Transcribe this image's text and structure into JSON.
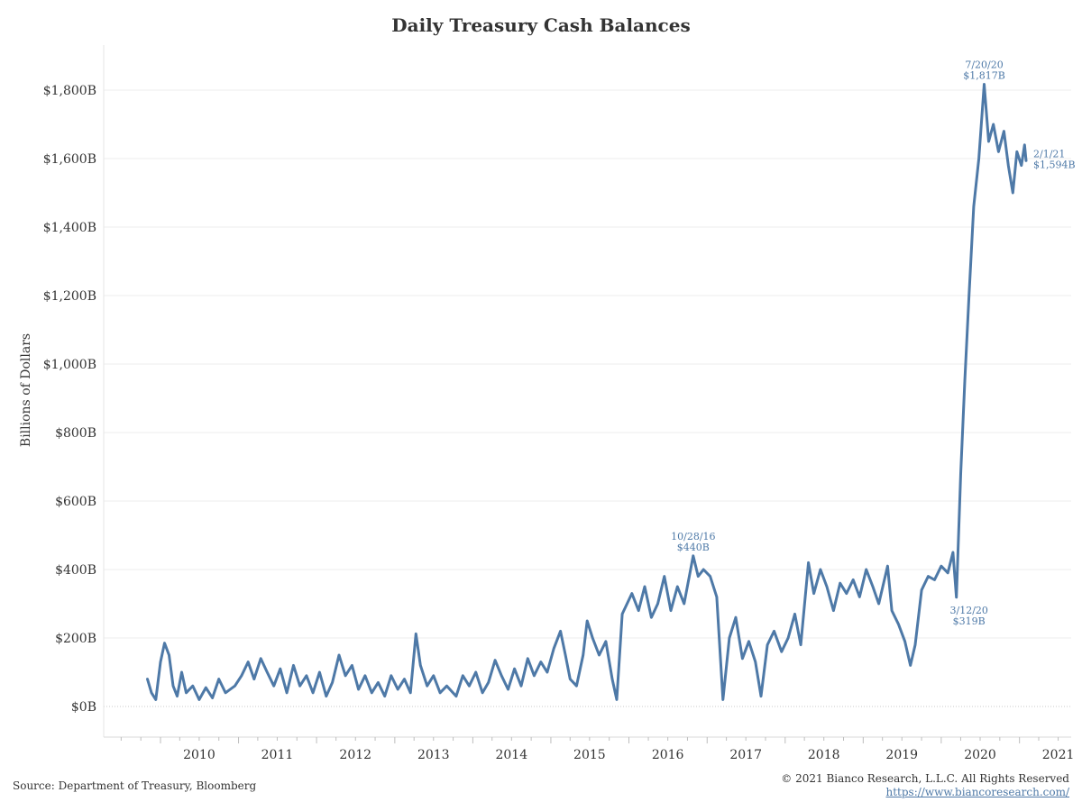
{
  "colors": {
    "line": "#4e79a7",
    "grid": "#ececec",
    "text": "#333333",
    "link": "#4e79a7"
  },
  "footer": {
    "source": "Source: Department of Treasury, Bloomberg",
    "copyright": "© 2021 Bianco Research, L.L.C. All Rights Reserved",
    "website": "https://www.biancoresearch.com/"
  },
  "chart_data": {
    "type": "line",
    "title": "Daily Treasury Cash Balances",
    "xlabel": "",
    "ylabel": "Billions of Dollars",
    "ylim": [
      0,
      1900
    ],
    "xlim": [
      "2009-08-01",
      "2021-06-15"
    ],
    "y_ticks": [
      0,
      200,
      400,
      600,
      800,
      1000,
      1200,
      1400,
      1600,
      1800
    ],
    "y_tick_labels": [
      "$0B",
      "$200B",
      "$400B",
      "$600B",
      "$800B",
      "$1,000B",
      "$1,200B",
      "$1,400B",
      "$1,600B",
      "$1,800B"
    ],
    "x_tick_labels": [
      "2010",
      "2011",
      "2012",
      "2013",
      "2014",
      "2015",
      "2016",
      "2017",
      "2018",
      "2019",
      "2020",
      "2021"
    ],
    "grid": true,
    "series": [
      {
        "color": "#4e79a7",
        "points": [
          [
            "2009-11-01",
            80
          ],
          [
            "2009-11-20",
            40
          ],
          [
            "2009-12-10",
            20
          ],
          [
            "2010-01-01",
            130
          ],
          [
            "2010-01-20",
            185
          ],
          [
            "2010-02-10",
            150
          ],
          [
            "2010-03-01",
            60
          ],
          [
            "2010-03-20",
            30
          ],
          [
            "2010-04-10",
            100
          ],
          [
            "2010-05-01",
            40
          ],
          [
            "2010-06-01",
            60
          ],
          [
            "2010-07-01",
            20
          ],
          [
            "2010-08-01",
            55
          ],
          [
            "2010-09-01",
            25
          ],
          [
            "2010-10-01",
            80
          ],
          [
            "2010-11-01",
            40
          ],
          [
            "2010-12-15",
            60
          ],
          [
            "2011-01-15",
            90
          ],
          [
            "2011-02-15",
            130
          ],
          [
            "2011-03-15",
            80
          ],
          [
            "2011-04-15",
            140
          ],
          [
            "2011-05-15",
            100
          ],
          [
            "2011-06-15",
            60
          ],
          [
            "2011-07-15",
            110
          ],
          [
            "2011-08-15",
            40
          ],
          [
            "2011-09-15",
            120
          ],
          [
            "2011-10-15",
            60
          ],
          [
            "2011-11-15",
            90
          ],
          [
            "2011-12-15",
            40
          ],
          [
            "2012-01-15",
            100
          ],
          [
            "2012-02-15",
            30
          ],
          [
            "2012-03-15",
            70
          ],
          [
            "2012-04-15",
            150
          ],
          [
            "2012-05-15",
            90
          ],
          [
            "2012-06-15",
            120
          ],
          [
            "2012-07-15",
            50
          ],
          [
            "2012-08-15",
            90
          ],
          [
            "2012-09-15",
            40
          ],
          [
            "2012-10-15",
            70
          ],
          [
            "2012-11-15",
            30
          ],
          [
            "2012-12-15",
            90
          ],
          [
            "2013-01-15",
            50
          ],
          [
            "2013-02-15",
            80
          ],
          [
            "2013-03-15",
            40
          ],
          [
            "2013-04-10",
            212
          ],
          [
            "2013-05-01",
            120
          ],
          [
            "2013-06-01",
            60
          ],
          [
            "2013-07-01",
            90
          ],
          [
            "2013-08-01",
            40
          ],
          [
            "2013-09-01",
            60
          ],
          [
            "2013-10-15",
            30
          ],
          [
            "2013-11-15",
            90
          ],
          [
            "2013-12-15",
            60
          ],
          [
            "2014-01-15",
            100
          ],
          [
            "2014-02-15",
            40
          ],
          [
            "2014-03-15",
            70
          ],
          [
            "2014-04-15",
            135
          ],
          [
            "2014-05-15",
            90
          ],
          [
            "2014-06-15",
            50
          ],
          [
            "2014-07-15",
            110
          ],
          [
            "2014-08-15",
            60
          ],
          [
            "2014-09-15",
            140
          ],
          [
            "2014-10-15",
            90
          ],
          [
            "2014-11-15",
            130
          ],
          [
            "2014-12-15",
            100
          ],
          [
            "2015-01-15",
            170
          ],
          [
            "2015-02-15",
            220
          ],
          [
            "2015-03-10",
            150
          ],
          [
            "2015-04-01",
            80
          ],
          [
            "2015-05-01",
            60
          ],
          [
            "2015-06-01",
            150
          ],
          [
            "2015-06-20",
            250
          ],
          [
            "2015-07-15",
            200
          ],
          [
            "2015-08-15",
            150
          ],
          [
            "2015-09-15",
            190
          ],
          [
            "2015-10-15",
            80
          ],
          [
            "2015-11-05",
            20
          ],
          [
            "2015-12-01",
            270
          ],
          [
            "2016-01-15",
            330
          ],
          [
            "2016-02-15",
            280
          ],
          [
            "2016-03-15",
            350
          ],
          [
            "2016-04-15",
            260
          ],
          [
            "2016-05-15",
            300
          ],
          [
            "2016-06-15",
            380
          ],
          [
            "2016-07-15",
            280
          ],
          [
            "2016-08-15",
            350
          ],
          [
            "2016-09-15",
            300
          ],
          [
            "2016-10-28",
            440
          ],
          [
            "2016-11-20",
            380
          ],
          [
            "2016-12-15",
            400
          ],
          [
            "2017-01-15",
            380
          ],
          [
            "2017-02-15",
            320
          ],
          [
            "2017-03-16",
            20
          ],
          [
            "2017-04-15",
            200
          ],
          [
            "2017-05-15",
            260
          ],
          [
            "2017-06-15",
            140
          ],
          [
            "2017-07-15",
            190
          ],
          [
            "2017-08-15",
            130
          ],
          [
            "2017-09-10",
            30
          ],
          [
            "2017-10-10",
            180
          ],
          [
            "2017-11-10",
            220
          ],
          [
            "2017-12-15",
            160
          ],
          [
            "2018-01-15",
            200
          ],
          [
            "2018-02-15",
            270
          ],
          [
            "2018-03-15",
            180
          ],
          [
            "2018-04-20",
            420
          ],
          [
            "2018-05-15",
            330
          ],
          [
            "2018-06-15",
            400
          ],
          [
            "2018-07-15",
            350
          ],
          [
            "2018-08-15",
            280
          ],
          [
            "2018-09-15",
            360
          ],
          [
            "2018-10-15",
            330
          ],
          [
            "2018-11-15",
            370
          ],
          [
            "2018-12-15",
            320
          ],
          [
            "2019-01-15",
            400
          ],
          [
            "2019-02-15",
            350
          ],
          [
            "2019-03-15",
            300
          ],
          [
            "2019-04-25",
            410
          ],
          [
            "2019-05-15",
            280
          ],
          [
            "2019-06-15",
            240
          ],
          [
            "2019-07-15",
            190
          ],
          [
            "2019-08-10",
            120
          ],
          [
            "2019-09-01",
            180
          ],
          [
            "2019-10-01",
            340
          ],
          [
            "2019-11-01",
            380
          ],
          [
            "2019-12-01",
            370
          ],
          [
            "2020-01-01",
            410
          ],
          [
            "2020-02-01",
            390
          ],
          [
            "2020-02-25",
            450
          ],
          [
            "2020-03-12",
            319
          ],
          [
            "2020-04-01",
            680
          ],
          [
            "2020-04-20",
            950
          ],
          [
            "2020-05-10",
            1200
          ],
          [
            "2020-06-01",
            1460
          ],
          [
            "2020-06-25",
            1600
          ],
          [
            "2020-07-20",
            1817
          ],
          [
            "2020-08-10",
            1650
          ],
          [
            "2020-09-01",
            1700
          ],
          [
            "2020-09-25",
            1620
          ],
          [
            "2020-10-20",
            1680
          ],
          [
            "2020-11-10",
            1580
          ],
          [
            "2020-12-01",
            1500
          ],
          [
            "2020-12-20",
            1620
          ],
          [
            "2021-01-10",
            1580
          ],
          [
            "2021-01-25",
            1640
          ],
          [
            "2021-02-01",
            1594
          ]
        ]
      }
    ],
    "annotations": [
      {
        "x": "2016-10-28",
        "y": 440,
        "date": "10/28/16",
        "value": "$440B",
        "position": "above"
      },
      {
        "x": "2020-03-12",
        "y": 319,
        "date": "3/12/20",
        "value": "$319B",
        "position": "below"
      },
      {
        "x": "2020-07-20",
        "y": 1817,
        "date": "7/20/20",
        "value": "$1,817B",
        "position": "above"
      },
      {
        "x": "2021-02-01",
        "y": 1594,
        "date": "2/1/21",
        "value": "$1,594B",
        "position": "right"
      }
    ]
  }
}
